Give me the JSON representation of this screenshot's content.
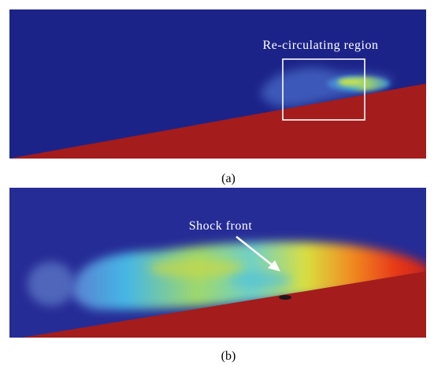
{
  "panels": [
    {
      "label": "(a)",
      "annotation": "Re-circulating region"
    },
    {
      "label": "(b)",
      "annotation": "Shock front"
    }
  ]
}
